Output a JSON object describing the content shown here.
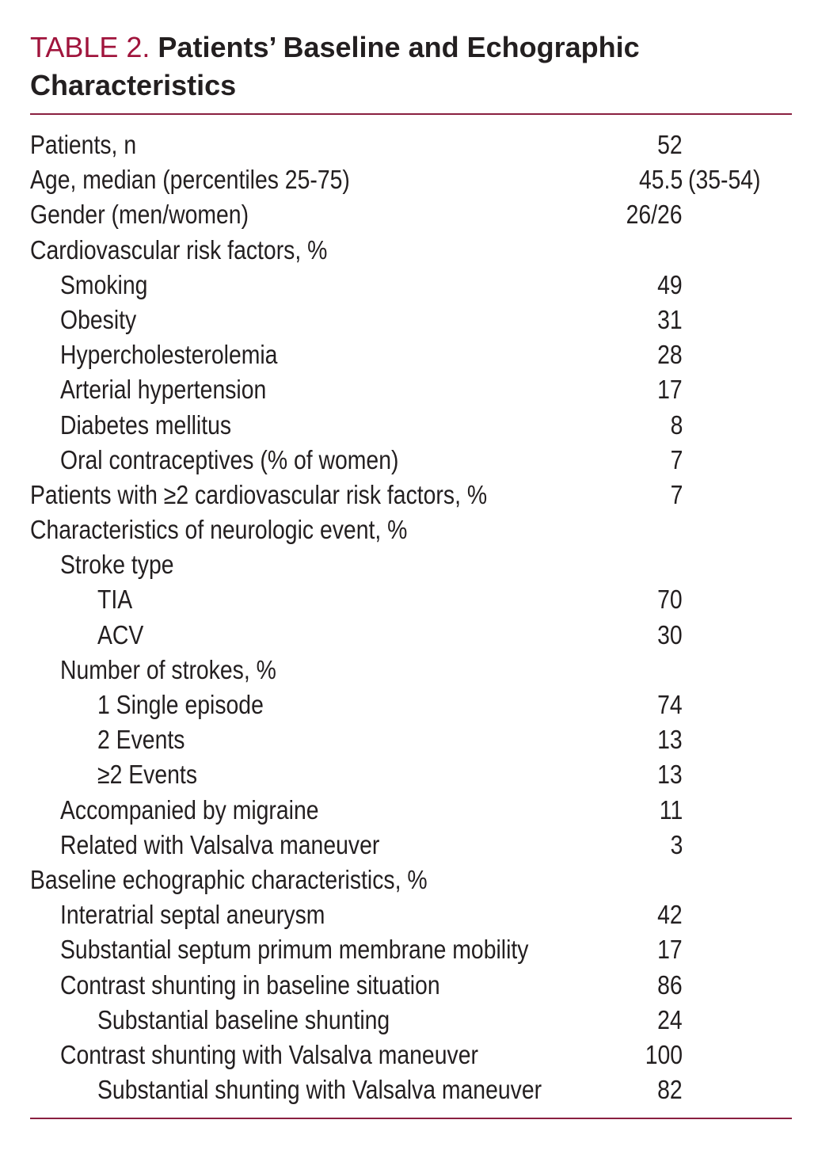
{
  "title": {
    "label": "TABLE 2.",
    "text": "Patients’ Baseline and Echographic Characteristics"
  },
  "colors": {
    "accent": "#a0143c",
    "rule": "#8a2040",
    "text": "#231f20"
  },
  "rows": [
    {
      "label": "Patients, n",
      "level": 0,
      "value": "52"
    },
    {
      "label": "Age, median (percentiles 25-75)",
      "level": 0,
      "value": "45.5",
      "value_extra": "(35-54)"
    },
    {
      "label": "Gender (men/women)",
      "level": 0,
      "value": "26/26"
    },
    {
      "label": "Cardiovascular risk factors, %",
      "level": 0,
      "value": ""
    },
    {
      "label": "Smoking",
      "level": 1,
      "value": "49"
    },
    {
      "label": "Obesity",
      "level": 1,
      "value": "31"
    },
    {
      "label": "Hypercholesterolemia",
      "level": 1,
      "value": "28"
    },
    {
      "label": "Arterial hypertension",
      "level": 1,
      "value": "17"
    },
    {
      "label": "Diabetes mellitus",
      "level": 1,
      "value": "8"
    },
    {
      "label": "Oral contraceptives (% of women)",
      "level": 1,
      "value": "7"
    },
    {
      "label": "Patients with ≥2 cardiovascular risk factors, %",
      "level": 0,
      "value": "7"
    },
    {
      "label": "Characteristics of neurologic event, %",
      "level": 0,
      "value": ""
    },
    {
      "label": "Stroke type",
      "level": 1,
      "value": ""
    },
    {
      "label": "TIA",
      "level": 2,
      "value": "70"
    },
    {
      "label": "ACV",
      "level": 2,
      "value": "30"
    },
    {
      "label": "Number of strokes, %",
      "level": 1,
      "value": ""
    },
    {
      "label": "1 Single episode",
      "level": 2,
      "value": "74"
    },
    {
      "label": "2 Events",
      "level": 2,
      "value": "13"
    },
    {
      "label": "≥2 Events",
      "level": 2,
      "value": "13"
    },
    {
      "label": "Accompanied by migraine",
      "level": 1,
      "value": "11"
    },
    {
      "label": "Related with Valsalva maneuver",
      "level": 1,
      "value": "3"
    },
    {
      "label": "Baseline echographic characteristics, %",
      "level": 0,
      "value": ""
    },
    {
      "label": "Interatrial septal aneurysm",
      "level": 1,
      "value": "42"
    },
    {
      "label": "Substantial septum primum membrane mobility",
      "level": 1,
      "value": "17"
    },
    {
      "label": "Contrast shunting in baseline situation",
      "level": 1,
      "value": "86"
    },
    {
      "label": "Substantial baseline shunting",
      "level": 2,
      "value": "24"
    },
    {
      "label": "Contrast shunting with Valsalva maneuver",
      "level": 1,
      "value": "100"
    },
    {
      "label": "Substantial shunting with Valsalva maneuver",
      "level": 2,
      "value": "82"
    }
  ]
}
